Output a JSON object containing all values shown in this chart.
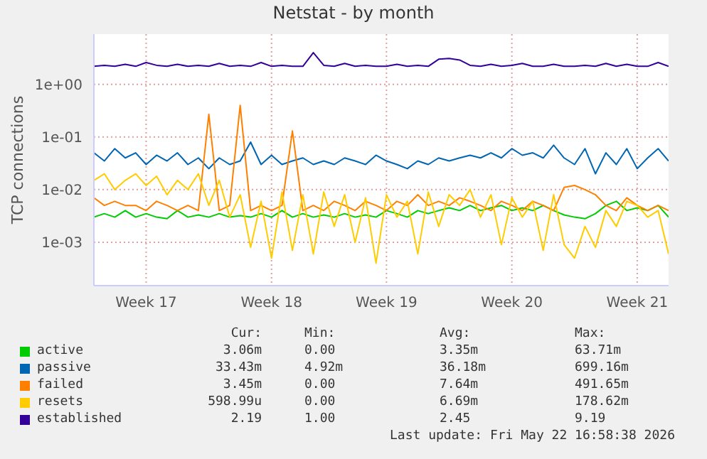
{
  "chart_data": {
    "type": "line",
    "title": "Netstat - by month",
    "ylabel": "TCP connections",
    "log": "y",
    "grid": true,
    "legend": "bottom",
    "ylim": [
      0.00015,
      9
    ],
    "yticks": [
      {
        "value": 0.001,
        "label": "1e-03"
      },
      {
        "value": 0.01,
        "label": "1e-02"
      },
      {
        "value": 0.1,
        "label": "1e-01"
      },
      {
        "value": 1,
        "label": "1e+00"
      }
    ],
    "categories": [
      null,
      null,
      null,
      null,
      null,
      "Week 17",
      null,
      null,
      null,
      null,
      null,
      null,
      null,
      null,
      null,
      null,
      null,
      "Week 18",
      null,
      null,
      null,
      null,
      null,
      null,
      null,
      null,
      null,
      null,
      "Week 19",
      null,
      null,
      null,
      null,
      null,
      null,
      null,
      null,
      null,
      null,
      null,
      "Week 20",
      null,
      null,
      null,
      null,
      null,
      null,
      null,
      null,
      null,
      null,
      null,
      "Week 21",
      null,
      null,
      null
    ],
    "series": [
      {
        "name": "active",
        "color": "#00cc00",
        "values": [
          0.003,
          0.0035,
          0.003,
          0.004,
          0.003,
          0.0035,
          0.003,
          0.0028,
          0.004,
          0.003,
          0.0033,
          0.003,
          0.0035,
          0.003,
          0.0032,
          0.003,
          0.0035,
          0.003,
          0.004,
          0.003,
          0.0035,
          0.003,
          0.0033,
          0.003,
          0.0035,
          0.003,
          0.0033,
          0.003,
          0.004,
          0.0035,
          0.003,
          0.004,
          0.0035,
          0.004,
          0.0045,
          0.004,
          0.005,
          0.004,
          0.0045,
          0.005,
          0.004,
          0.0045,
          0.004,
          0.005,
          0.004,
          0.0033,
          0.003,
          0.0028,
          0.0035,
          0.005,
          0.006,
          0.004,
          0.0045,
          0.004,
          0.005,
          0.003
        ]
      },
      {
        "name": "passive",
        "color": "#0066b3",
        "values": [
          0.05,
          0.035,
          0.06,
          0.04,
          0.05,
          0.03,
          0.045,
          0.035,
          0.05,
          0.03,
          0.04,
          0.025,
          0.04,
          0.03,
          0.035,
          0.08,
          0.03,
          0.045,
          0.03,
          0.035,
          0.04,
          0.03,
          0.035,
          0.03,
          0.04,
          0.035,
          0.03,
          0.045,
          0.035,
          0.03,
          0.025,
          0.035,
          0.03,
          0.04,
          0.035,
          0.04,
          0.045,
          0.04,
          0.05,
          0.04,
          0.06,
          0.045,
          0.05,
          0.04,
          0.07,
          0.04,
          0.03,
          0.06,
          0.02,
          0.05,
          0.03,
          0.06,
          0.025,
          0.04,
          0.06,
          0.035
        ]
      },
      {
        "name": "failed",
        "color": "#ff8000",
        "values": [
          0.007,
          0.005,
          0.006,
          0.005,
          0.005,
          0.004,
          0.006,
          0.005,
          0.004,
          0.005,
          0.004,
          0.27,
          0.004,
          0.005,
          0.4,
          0.004,
          0.005,
          0.004,
          0.005,
          0.13,
          0.004,
          0.005,
          0.004,
          0.006,
          0.005,
          0.004,
          0.006,
          0.005,
          0.004,
          0.006,
          0.005,
          0.008,
          0.005,
          0.006,
          0.005,
          0.007,
          0.006,
          0.005,
          0.004,
          0.006,
          0.005,
          0.004,
          0.006,
          0.005,
          0.004,
          0.011,
          0.012,
          0.01,
          0.008,
          0.005,
          0.004,
          0.007,
          0.005,
          0.004,
          0.005,
          0.004
        ]
      },
      {
        "name": "resets",
        "color": "#ffcc00",
        "values": [
          0.015,
          0.02,
          0.01,
          0.015,
          0.02,
          0.012,
          0.018,
          0.008,
          0.015,
          0.01,
          0.02,
          0.005,
          0.015,
          0.003,
          0.008,
          0.0008,
          0.006,
          0.0005,
          0.009,
          0.0007,
          0.008,
          0.0006,
          0.009,
          0.002,
          0.008,
          0.001,
          0.007,
          0.0004,
          0.008,
          0.003,
          0.006,
          0.0006,
          0.009,
          0.002,
          0.008,
          0.005,
          0.01,
          0.003,
          0.008,
          0.0009,
          0.007,
          0.003,
          0.006,
          0.0007,
          0.008,
          0.0009,
          0.0005,
          0.002,
          0.0008,
          0.004,
          0.002,
          0.006,
          0.005,
          0.003,
          0.004,
          0.0006
        ]
      },
      {
        "name": "established",
        "color": "#330099",
        "values": [
          2.2,
          2.3,
          2.2,
          2.4,
          2.2,
          2.6,
          2.3,
          2.2,
          2.4,
          2.2,
          2.3,
          2.2,
          2.5,
          2.2,
          2.3,
          2.2,
          2.6,
          2.2,
          2.3,
          2.2,
          2.2,
          4.0,
          2.3,
          2.2,
          2.5,
          2.2,
          2.3,
          2.2,
          2.2,
          2.4,
          2.2,
          2.3,
          2.2,
          3.0,
          3.1,
          2.9,
          2.3,
          2.2,
          2.4,
          2.2,
          2.3,
          2.5,
          2.2,
          2.2,
          2.4,
          2.2,
          2.2,
          2.3,
          2.2,
          2.5,
          2.2,
          2.4,
          2.2,
          2.2,
          2.6,
          2.2
        ]
      }
    ],
    "annotations": [
      "Cur:",
      "Min:",
      "Avg:",
      "Max:",
      "3.06m",
      "0.00",
      "3.35m",
      "63.71m",
      "33.43m",
      "4.92m",
      "36.18m",
      "699.16m",
      "3.45m",
      "0.00",
      "7.64m",
      "491.65m",
      "598.99u",
      "0.00",
      "6.69m",
      "178.62m",
      "2.19",
      "1.00",
      "2.45",
      "9.19",
      "Last update: Fri May 22 16:58:38 2026"
    ]
  }
}
